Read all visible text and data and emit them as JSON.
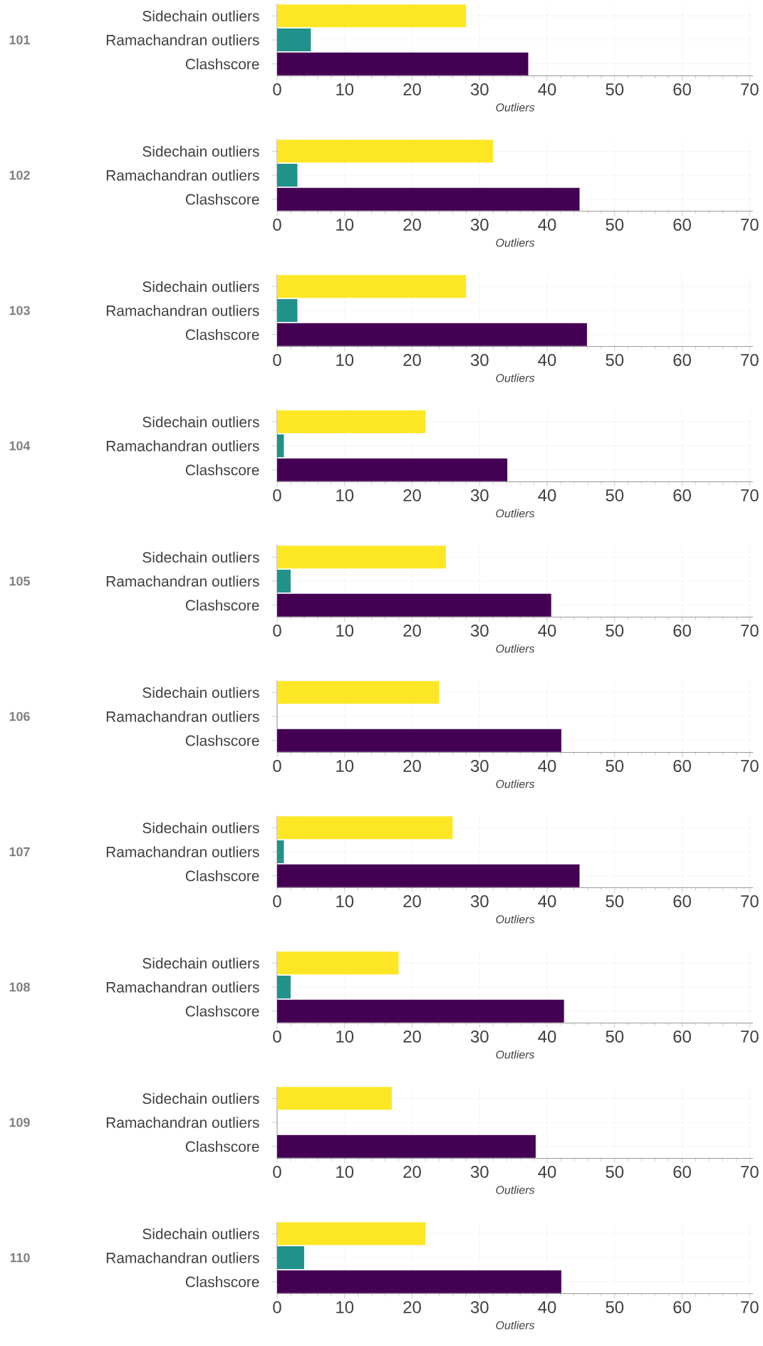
{
  "chart_data": [
    {
      "type": "bar",
      "orientation": "horizontal",
      "ylabel": "101",
      "xlabel": "Outliers",
      "categories": [
        "Sidechain outliers",
        "Ramachandran outliers",
        "Clashscore"
      ],
      "values": [
        28,
        5,
        37.2
      ],
      "colors": [
        "#fde725",
        "#21918c",
        "#440154"
      ],
      "xlim": [
        0,
        70.5
      ],
      "xticks": [
        0,
        10,
        20,
        30,
        40,
        50,
        60,
        70
      ],
      "grid": true
    },
    {
      "type": "bar",
      "orientation": "horizontal",
      "ylabel": "102",
      "xlabel": "Outliers",
      "categories": [
        "Sidechain outliers",
        "Ramachandran outliers",
        "Clashscore"
      ],
      "values": [
        32,
        3,
        44.8
      ],
      "colors": [
        "#fde725",
        "#21918c",
        "#440154"
      ],
      "xlim": [
        0,
        70.5
      ],
      "xticks": [
        0,
        10,
        20,
        30,
        40,
        50,
        60,
        70
      ],
      "grid": true
    },
    {
      "type": "bar",
      "orientation": "horizontal",
      "ylabel": "103",
      "xlabel": "Outliers",
      "categories": [
        "Sidechain outliers",
        "Ramachandran outliers",
        "Clashscore"
      ],
      "values": [
        28,
        3,
        45.9
      ],
      "colors": [
        "#fde725",
        "#21918c",
        "#440154"
      ],
      "xlim": [
        0,
        70.5
      ],
      "xticks": [
        0,
        10,
        20,
        30,
        40,
        50,
        60,
        70
      ],
      "grid": true
    },
    {
      "type": "bar",
      "orientation": "horizontal",
      "ylabel": "104",
      "xlabel": "Outliers",
      "categories": [
        "Sidechain outliers",
        "Ramachandran outliers",
        "Clashscore"
      ],
      "values": [
        22,
        1,
        34.1
      ],
      "colors": [
        "#fde725",
        "#21918c",
        "#440154"
      ],
      "xlim": [
        0,
        70.5
      ],
      "xticks": [
        0,
        10,
        20,
        30,
        40,
        50,
        60,
        70
      ],
      "grid": true
    },
    {
      "type": "bar",
      "orientation": "horizontal",
      "ylabel": "105",
      "xlabel": "Outliers",
      "categories": [
        "Sidechain outliers",
        "Ramachandran outliers",
        "Clashscore"
      ],
      "values": [
        25,
        2,
        40.6
      ],
      "colors": [
        "#fde725",
        "#21918c",
        "#440154"
      ],
      "xlim": [
        0,
        70.5
      ],
      "xticks": [
        0,
        10,
        20,
        30,
        40,
        50,
        60,
        70
      ],
      "grid": true
    },
    {
      "type": "bar",
      "orientation": "horizontal",
      "ylabel": "106",
      "xlabel": "Outliers",
      "categories": [
        "Sidechain outliers",
        "Ramachandran outliers",
        "Clashscore"
      ],
      "values": [
        24,
        0,
        42.1
      ],
      "colors": [
        "#fde725",
        "#21918c",
        "#440154"
      ],
      "xlim": [
        0,
        70.5
      ],
      "xticks": [
        0,
        10,
        20,
        30,
        40,
        50,
        60,
        70
      ],
      "grid": true
    },
    {
      "type": "bar",
      "orientation": "horizontal",
      "ylabel": "107",
      "xlabel": "Outliers",
      "categories": [
        "Sidechain outliers",
        "Ramachandran outliers",
        "Clashscore"
      ],
      "values": [
        26,
        1,
        44.8
      ],
      "colors": [
        "#fde725",
        "#21918c",
        "#440154"
      ],
      "xlim": [
        0,
        70.5
      ],
      "xticks": [
        0,
        10,
        20,
        30,
        40,
        50,
        60,
        70
      ],
      "grid": true
    },
    {
      "type": "bar",
      "orientation": "horizontal",
      "ylabel": "108",
      "xlabel": "Outliers",
      "categories": [
        "Sidechain outliers",
        "Ramachandran outliers",
        "Clashscore"
      ],
      "values": [
        18,
        2,
        42.5
      ],
      "colors": [
        "#fde725",
        "#21918c",
        "#440154"
      ],
      "xlim": [
        0,
        70.5
      ],
      "xticks": [
        0,
        10,
        20,
        30,
        40,
        50,
        60,
        70
      ],
      "grid": true
    },
    {
      "type": "bar",
      "orientation": "horizontal",
      "ylabel": "109",
      "xlabel": "Outliers",
      "categories": [
        "Sidechain outliers",
        "Ramachandran outliers",
        "Clashscore"
      ],
      "values": [
        17,
        0,
        38.3
      ],
      "colors": [
        "#fde725",
        "#21918c",
        "#440154"
      ],
      "xlim": [
        0,
        70.5
      ],
      "xticks": [
        0,
        10,
        20,
        30,
        40,
        50,
        60,
        70
      ],
      "grid": true
    },
    {
      "type": "bar",
      "orientation": "horizontal",
      "ylabel": "110",
      "xlabel": "Outliers",
      "categories": [
        "Sidechain outliers",
        "Ramachandran outliers",
        "Clashscore"
      ],
      "values": [
        22,
        4,
        42.1
      ],
      "colors": [
        "#fde725",
        "#21918c",
        "#440154"
      ],
      "xlim": [
        0,
        70.5
      ],
      "xticks": [
        0,
        10,
        20,
        30,
        40,
        50,
        60,
        70
      ],
      "grid": true
    }
  ]
}
